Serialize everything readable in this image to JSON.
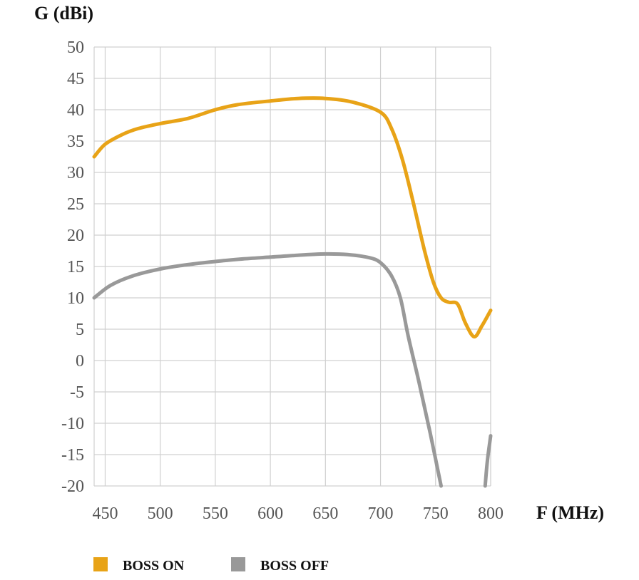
{
  "chart_data": {
    "type": "line",
    "ylabel": "G (dBi)",
    "xlabel": "F (MHz)",
    "xlim": [
      440,
      800
    ],
    "ylim": [
      -20,
      50
    ],
    "x_ticks": [
      450,
      500,
      550,
      600,
      650,
      700,
      750,
      800
    ],
    "y_ticks": [
      50,
      45,
      40,
      35,
      30,
      25,
      20,
      15,
      10,
      5,
      0,
      -5,
      -10,
      -15,
      -20
    ],
    "grid": true,
    "legend_position": "bottom-left",
    "series": [
      {
        "name": "BOSS ON",
        "color": "#E8A317",
        "x": [
          440,
          450,
          465,
          480,
          500,
          525,
          550,
          570,
          600,
          625,
          650,
          675,
          700,
          710,
          720,
          730,
          740,
          748,
          755,
          762,
          770,
          777,
          785,
          792,
          800
        ],
        "y": [
          32.5,
          34.5,
          36.0,
          37.0,
          37.8,
          38.6,
          40.0,
          40.8,
          41.4,
          41.8,
          41.8,
          41.2,
          39.6,
          37.0,
          32.0,
          25.0,
          17.5,
          12.5,
          10.0,
          9.3,
          9.0,
          6.0,
          3.8,
          5.5,
          8.0
        ]
      },
      {
        "name": "BOSS OFF",
        "color": "#999999",
        "segments": [
          {
            "x": [
              440,
              455,
              475,
              500,
              525,
              550,
              575,
              600,
              625,
              650,
              670,
              690,
              700,
              710,
              718,
              725,
              735,
              745,
              755
            ],
            "y": [
              10.0,
              12.0,
              13.5,
              14.6,
              15.3,
              15.8,
              16.2,
              16.5,
              16.8,
              17.0,
              16.9,
              16.4,
              15.6,
              13.5,
              10.0,
              4.0,
              -3.5,
              -11.5,
              -20.0
            ]
          },
          {
            "x": [
              795,
              797,
              800
            ],
            "y": [
              -20.0,
              -16.0,
              -12.0
            ]
          }
        ]
      }
    ]
  }
}
